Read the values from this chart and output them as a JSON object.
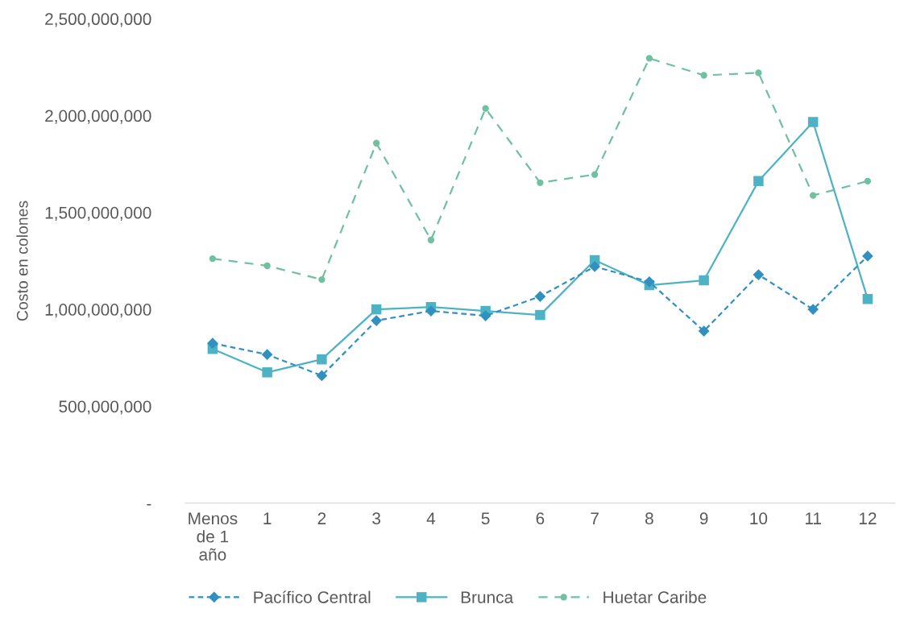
{
  "chart_data": {
    "type": "line",
    "ylabel": "Costo en colones",
    "categories": [
      "Menos\nde 1\naño",
      "1",
      "2",
      "3",
      "4",
      "5",
      "6",
      "7",
      "8",
      "9",
      "10",
      "11",
      "12"
    ],
    "series": [
      {
        "name": "Pacífico Central",
        "color": "#3190c0",
        "marker": "diamond",
        "line_style": "dotted",
        "values": [
          825000000,
          767000000,
          658000000,
          942000000,
          992000000,
          967000000,
          1067000000,
          1221000000,
          1142000000,
          888000000,
          1179000000,
          1000000000,
          1275000000
        ]
      },
      {
        "name": "Brunca",
        "color": "#4db3c4",
        "marker": "square",
        "line_style": "solid",
        "values": [
          796000000,
          675000000,
          742000000,
          1000000000,
          1012000000,
          992000000,
          971000000,
          1254000000,
          1125000000,
          1150000000,
          1662000000,
          1967000000,
          1054000000
        ]
      },
      {
        "name": "Huetar Caribe",
        "color": "#6fc1a0",
        "marker": "circle",
        "line_style": "dashed",
        "values": [
          1262000000,
          1225000000,
          1154000000,
          1858000000,
          1358000000,
          2037000000,
          1654000000,
          1696000000,
          2296000000,
          2208000000,
          2221000000,
          1588000000,
          1662000000
        ]
      }
    ],
    "ylim": [
      0,
      2500000000
    ],
    "yticks": [
      {
        "value": 0,
        "label": "-"
      },
      {
        "value": 500000000,
        "label": "500,000,000"
      },
      {
        "value": 1000000000,
        "label": "1,000,000,000"
      },
      {
        "value": 1500000000,
        "label": "1,500,000,000"
      },
      {
        "value": 2000000000,
        "label": "2,000,000,000"
      },
      {
        "value": 2500000000,
        "label": "2,500,000,000"
      }
    ],
    "grid": false,
    "legend": "bottom"
  }
}
